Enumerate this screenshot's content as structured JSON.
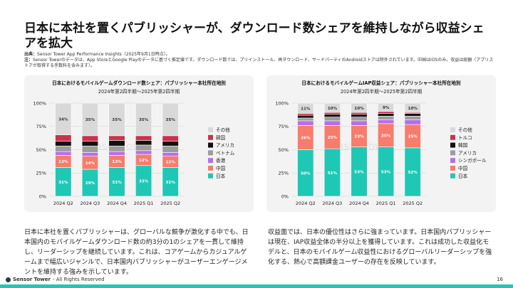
{
  "slide": {
    "title": "日本に本社を置くパブリッシャーが、ダウンロード数シェアを維持しながら収益シェアを拡大",
    "source_label": "出典：",
    "source_text": "Sensor Tower App Performance Insights（2025年9月1日時点）。",
    "note_label": "注：",
    "note_text": "Sensor Towerのデータは、App StoreとGoogle Playのデータに基づく推定値です。ダウンロード数では、プリインストール、再ダウンロード、サードパーティのAndroidストアは除外されています。中国はiOSのみ。収益は総額（アプリストアが取得する手数料を含みます）。",
    "left_paragraph": "日本に本社を置くパブリッシャーは、グローバルな競争が激化する中でも、日本国内のモバイルゲームダウンロード数の約3分の1のシェアを一貫して維持し、リーダーシップを継続しています。これは、コアゲームからカジュアルゲームまで幅広いジャンルで、日本国内パブリッシャーがユーザーエンゲージメントを維持する強みを示しています。",
    "right_paragraph": "収益面では、日本の優位性はさらに強まっています。日本国内パブリッシャーは現在、IAP収益全体の半分以上を獲得しています。これは成功した収益化モデルと、日本のモバイルゲーム収益性におけるグローバルリーダーシップを強化する、熱心で高額課金ユーザーの存在を反映しています。",
    "footer_brand": "Sensor Tower",
    "footer_rights": "- All Rights Reserved",
    "page_number": "16",
    "watermark": "Sensor Tower",
    "colors": {
      "accent": "#1fc8b5",
      "card_bg": "#f3f3f3"
    }
  },
  "chart_data": [
    {
      "type": "bar",
      "stacked": true,
      "title": "日本におけるモバイルゲームダウンロード数シェア：パブリッシャー本社所在地別",
      "subtitle": "2024年第2四半期～2025年第2四半期",
      "categories": [
        "2024 Q2",
        "2024 Q3",
        "2024 Q4",
        "2025 Q1",
        "2025 Q2"
      ],
      "ylim": [
        0,
        100
      ],
      "yticks": [
        "0%",
        "25%",
        "50%",
        "75%",
        "100%"
      ],
      "legend_position": "right",
      "series": [
        {
          "name": "日本",
          "color": "#1fc8b5",
          "values": [
            31,
            29,
            31,
            33,
            31
          ],
          "labels": [
            "31%",
            "29%",
            "31%",
            "33%",
            "31%"
          ]
        },
        {
          "name": "中国",
          "color": "#f77c6c",
          "values": [
            13,
            14,
            13,
            12,
            12
          ],
          "labels": [
            "13%",
            "14%",
            "13%",
            "12%",
            "12%"
          ]
        },
        {
          "name": "香港",
          "color": "#b86ee8",
          "values": [
            4,
            4,
            4,
            4,
            4
          ]
        },
        {
          "name": "ベトナム",
          "color": "#9c9c9c",
          "values": [
            6,
            7,
            6,
            6,
            7
          ]
        },
        {
          "name": "アメリカ",
          "color": "#111111",
          "values": [
            5,
            5,
            6,
            5,
            5
          ]
        },
        {
          "name": "韓国",
          "color": "#c9324c",
          "values": [
            7,
            6,
            5,
            5,
            6
          ]
        },
        {
          "name": "その他",
          "color": "#d9d9d9",
          "values": [
            34,
            35,
            35,
            35,
            35
          ],
          "labels": [
            "34%",
            "35%",
            "35%",
            "35%",
            "35%"
          ]
        }
      ]
    },
    {
      "type": "bar",
      "stacked": true,
      "title": "日本におけるモバイルゲームIAP収益シェア：パブリッシャー本社所在地別",
      "subtitle": "2024年第2四半期～2025年第2四半期",
      "categories": [
        "2024 Q2",
        "2024 Q3",
        "2024 Q4",
        "2025 Q1",
        "2025 Q2"
      ],
      "ylim": [
        0,
        100
      ],
      "yticks": [
        "0%",
        "25%",
        "50%",
        "75%",
        "100%"
      ],
      "legend_position": "right",
      "series": [
        {
          "name": "日本",
          "color": "#1fc8b5",
          "values": [
            50,
            51,
            53,
            53,
            52
          ],
          "labels": [
            "50%",
            "51%",
            "53%",
            "53%",
            "52%"
          ]
        },
        {
          "name": "中国",
          "color": "#f77c6c",
          "values": [
            26,
            25,
            23,
            25,
            25
          ],
          "labels": [
            "26%",
            "25%",
            "23%",
            "25%",
            "25%"
          ]
        },
        {
          "name": "シンガポール",
          "color": "#b86ee8",
          "values": [
            5,
            5,
            5,
            4,
            5
          ]
        },
        {
          "name": "アメリカ",
          "color": "#9c9c9c",
          "values": [
            3,
            4,
            4,
            4,
            4
          ]
        },
        {
          "name": "韓国",
          "color": "#111111",
          "values": [
            3,
            3,
            3,
            3,
            3
          ]
        },
        {
          "name": "トルコ",
          "color": "#c9324c",
          "values": [
            2,
            2,
            2,
            2,
            1
          ]
        },
        {
          "name": "その他",
          "color": "#d9d9d9",
          "values": [
            11,
            10,
            10,
            9,
            10
          ],
          "labels": [
            "11%",
            "10%",
            "10%",
            "9%",
            "10%"
          ]
        }
      ]
    }
  ]
}
